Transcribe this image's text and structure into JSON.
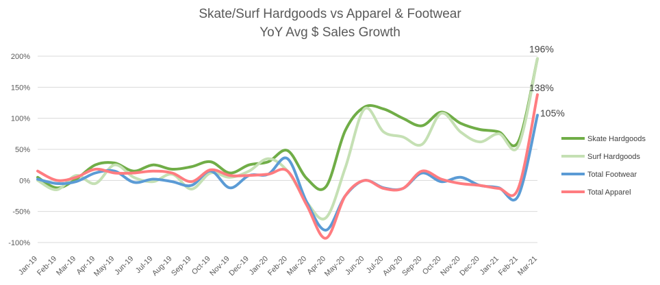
{
  "chart_data": {
    "type": "line",
    "title": [
      "Skate/Surf Hardgoods vs Apparel & Footwear",
      "YoY Avg $ Sales Growth"
    ],
    "xlabel": "",
    "ylabel": "",
    "ylim": [
      -100,
      200
    ],
    "yticks": [
      -100,
      -50,
      0,
      50,
      100,
      150,
      200
    ],
    "ytick_labels": [
      "-100%",
      "-50%",
      "0%",
      "50%",
      "100%",
      "150%",
      "200%"
    ],
    "grid": true,
    "legend_position": "right",
    "categories": [
      "Jan-19",
      "Feb-19",
      "Mar-19",
      "Apr-19",
      "May-19",
      "Jun-19",
      "Jul-19",
      "Aug-19",
      "Sep-19",
      "Oct-19",
      "Nov-19",
      "Dec-19",
      "Jan-20",
      "Feb-20",
      "Mar-20",
      "Apr-20",
      "May-20",
      "Jun-20",
      "Jul-20",
      "Aug-20",
      "Sep-20",
      "Oct-20",
      "Nov-20",
      "Dec-20",
      "Jan-21",
      "Feb-21",
      "Mar-21"
    ],
    "series": [
      {
        "name": "Skate Hardgoods",
        "color": "#70ad47",
        "width": 4,
        "values": [
          5,
          -12,
          2,
          25,
          28,
          15,
          25,
          18,
          22,
          30,
          12,
          25,
          30,
          48,
          3,
          -10,
          80,
          118,
          115,
          100,
          88,
          110,
          92,
          82,
          78,
          62,
          196
        ]
      },
      {
        "name": "Surf Hardgoods",
        "color": "#c5e0b4",
        "width": 4,
        "values": [
          0,
          -15,
          8,
          -5,
          25,
          5,
          -2,
          10,
          -14,
          12,
          5,
          15,
          35,
          15,
          -35,
          -60,
          20,
          115,
          78,
          70,
          58,
          108,
          78,
          62,
          75,
          55,
          196
        ]
      },
      {
        "name": "Total Footwear",
        "color": "#5b9bd5",
        "width": 4,
        "values": [
          2,
          -5,
          -2,
          12,
          15,
          -3,
          2,
          -2,
          -8,
          15,
          -12,
          8,
          10,
          35,
          -35,
          -80,
          -25,
          0,
          -12,
          -13,
          12,
          -2,
          5,
          -8,
          -12,
          -25,
          105
        ]
      },
      {
        "name": "Total Apparel",
        "color": "#ff7c80",
        "width": 4,
        "values": [
          15,
          0,
          5,
          18,
          12,
          12,
          15,
          12,
          -2,
          17,
          8,
          8,
          10,
          15,
          -40,
          -93,
          -25,
          0,
          -13,
          -13,
          15,
          2,
          -5,
          -8,
          -13,
          -13,
          138
        ]
      }
    ],
    "annotations": [
      {
        "text": "196%",
        "series": "Surf Hardgoods",
        "category": "Mar-21",
        "value": 196
      },
      {
        "text": "138%",
        "series": "Total Apparel",
        "category": "Mar-21",
        "value": 138
      },
      {
        "text": "105%",
        "series": "Total Footwear",
        "category": "Mar-21",
        "value": 105
      }
    ]
  }
}
